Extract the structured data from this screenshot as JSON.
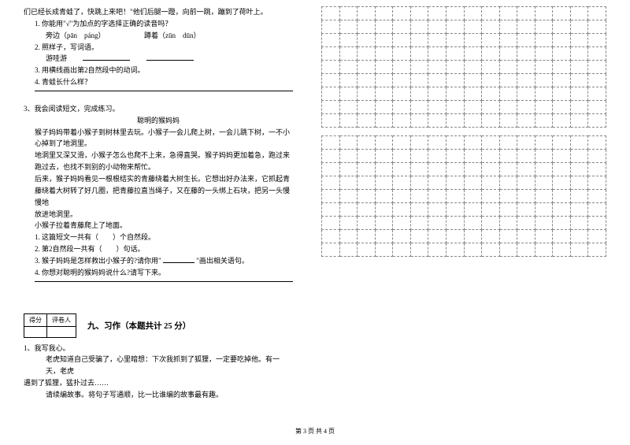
{
  "left": {
    "p1": "们已经长成青蛙了，快跳上来吧！\"他们后腿一蹬，向前一跳，蹦到了荷叶上。",
    "q1": "1. 你能用\"√\"为加点的字选择正确的读音吗？",
    "q1a": "旁边（pān　páng）　　　　　　蹲着（zūn　dūn）",
    "q2": "2. 照样子，写词语。",
    "q2a": "游哇游　　",
    "q3": "3. 用横线画出第2自然段中的动词。",
    "q4": "4. 青蛙长什么样？",
    "s3": "3、我会阅读短文，完成练习。",
    "title2": "聪明的猴妈妈",
    "t2p1": "猴子妈妈带着小猴子到树林里去玩。小猴子一会儿爬上树，一会儿跳下树，一不小",
    "t2p2": "心掉到了地洞里。",
    "t2p3": "地洞里又深又滑，小猴子怎么也爬不上来，急得直哭。猴子妈妈更加着急，跑过来",
    "t2p4": "跑过去，也找不到别的小动物来帮忙。",
    "t2p5": "后来，猴子妈妈看见一根根结实的青藤绕着大树生长。它想出好办法来，它抓起青",
    "t2p6": "藤绕着大树转了好几圈，把青藤拉直当绳子，又在藤的一头绑上石块，把另一头慢慢地",
    "t2p7": "放进地洞里。",
    "t2p8": "小猴子拉着青藤爬上了地面。",
    "t2q1": "1. 这篇短文一共有（　　）个自然段。",
    "t2q2": "2. 第2自然段一共有（　　）句话。",
    "t2q3a": "3. 猴子妈妈是怎样救出小猴子的?请你用\"",
    "t2q3b": "\"画出相关语句。",
    "t2q4": "4. 你想对聪明的猴妈妈说什么?请写下来。",
    "scoreLabel1": "得分",
    "scoreLabel2": "评卷人",
    "sectionTitle": "九、习作（本题共计 25 分）",
    "w1": "1、我写我心。",
    "w2": "老虎知道自己受骗了，心里暗想：下次我抓到了狐狸，一定要吃掉他。有一天，老虎",
    "w3": "遇到了狐狸，猛扑过去……",
    "w4": "请续编故事。将句子写通顺，比一比谁编的故事最有趣。"
  },
  "grid": {
    "rows": 9,
    "cols": 16,
    "blocks": 2
  },
  "footer": "第 3 页 共 4 页"
}
